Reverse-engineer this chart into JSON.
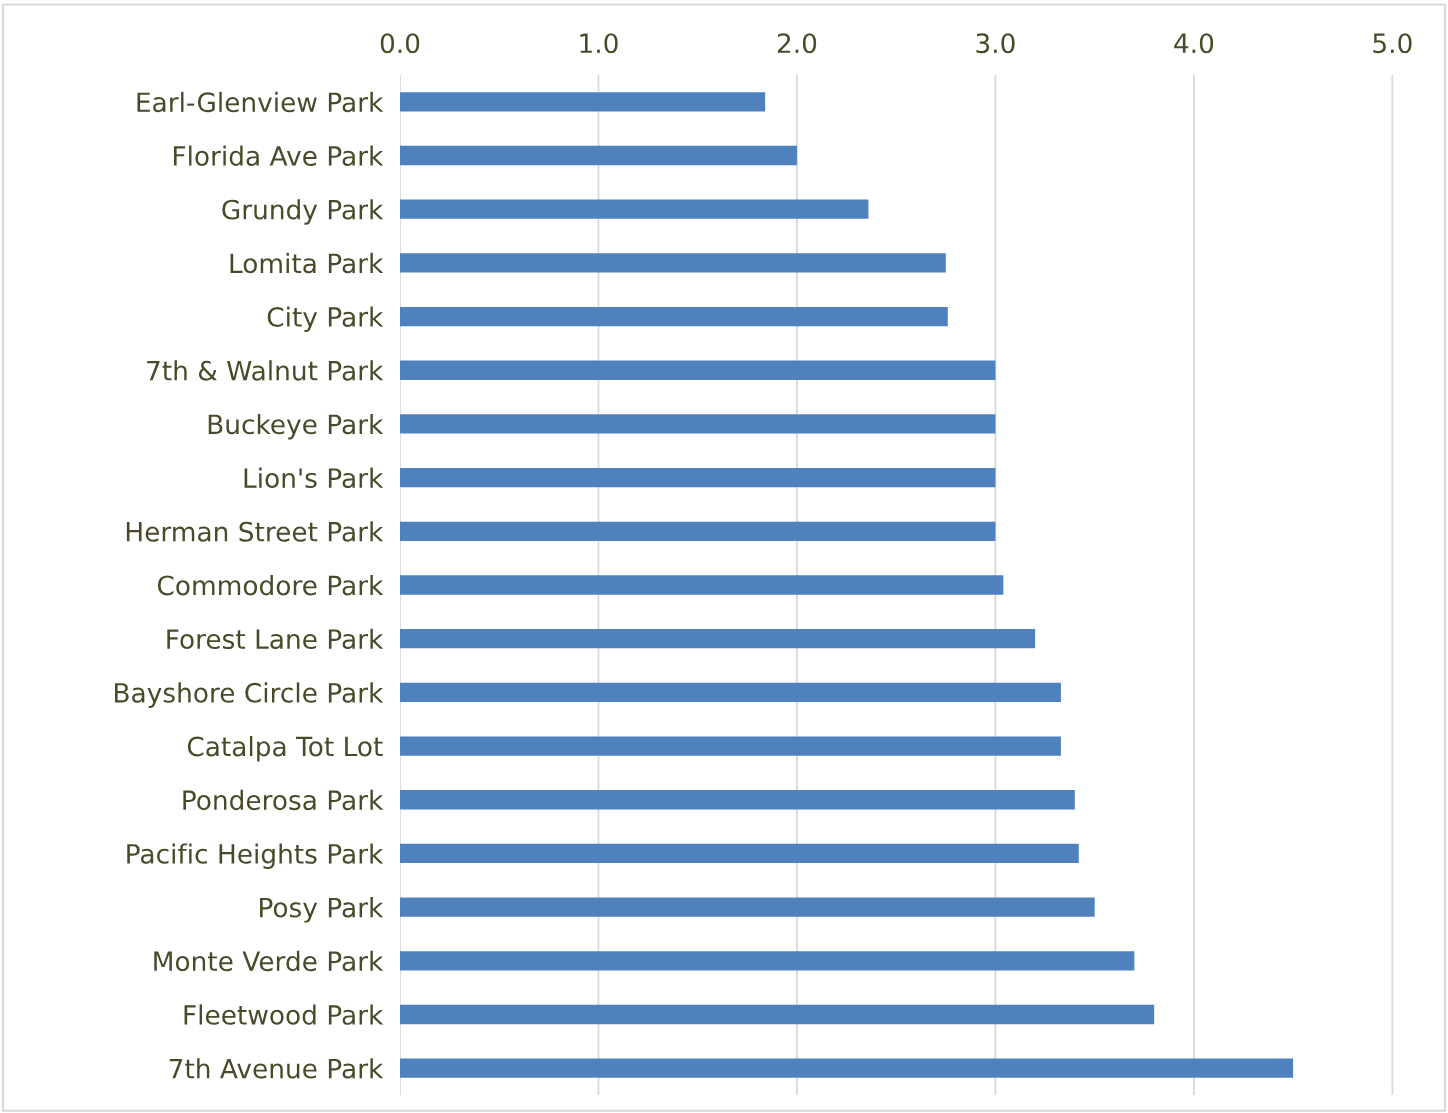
{
  "chart_data": {
    "type": "bar",
    "orientation": "horizontal",
    "categories": [
      "Earl-Glenview Park",
      "Florida Ave Park",
      "Grundy Park",
      "Lomita Park",
      "City Park",
      "7th & Walnut Park",
      "Buckeye Park",
      "Lion's Park",
      "Herman Street Park",
      "Commodore Park",
      "Forest Lane Park",
      "Bayshore Circle Park",
      "Catalpa Tot Lot",
      "Ponderosa Park",
      "Pacific Heights Park",
      "Posy Park",
      "Monte Verde Park",
      "Fleetwood Park",
      "7th Avenue Park"
    ],
    "values": [
      1.84,
      2.0,
      2.36,
      2.75,
      2.76,
      3.0,
      3.0,
      3.0,
      3.0,
      3.04,
      3.2,
      3.33,
      3.33,
      3.4,
      3.42,
      3.5,
      3.7,
      3.8,
      4.5
    ],
    "color": "#4f81bd",
    "xlim": [
      0,
      5
    ],
    "xticks": [
      {
        "value": 0,
        "label": "0.0"
      },
      {
        "value": 1,
        "label": "1.0"
      },
      {
        "value": 2,
        "label": "2.0"
      },
      {
        "value": 3,
        "label": "3.0"
      },
      {
        "value": 4,
        "label": "4.0"
      },
      {
        "value": 5,
        "label": "5.0"
      }
    ],
    "grid": "x"
  }
}
